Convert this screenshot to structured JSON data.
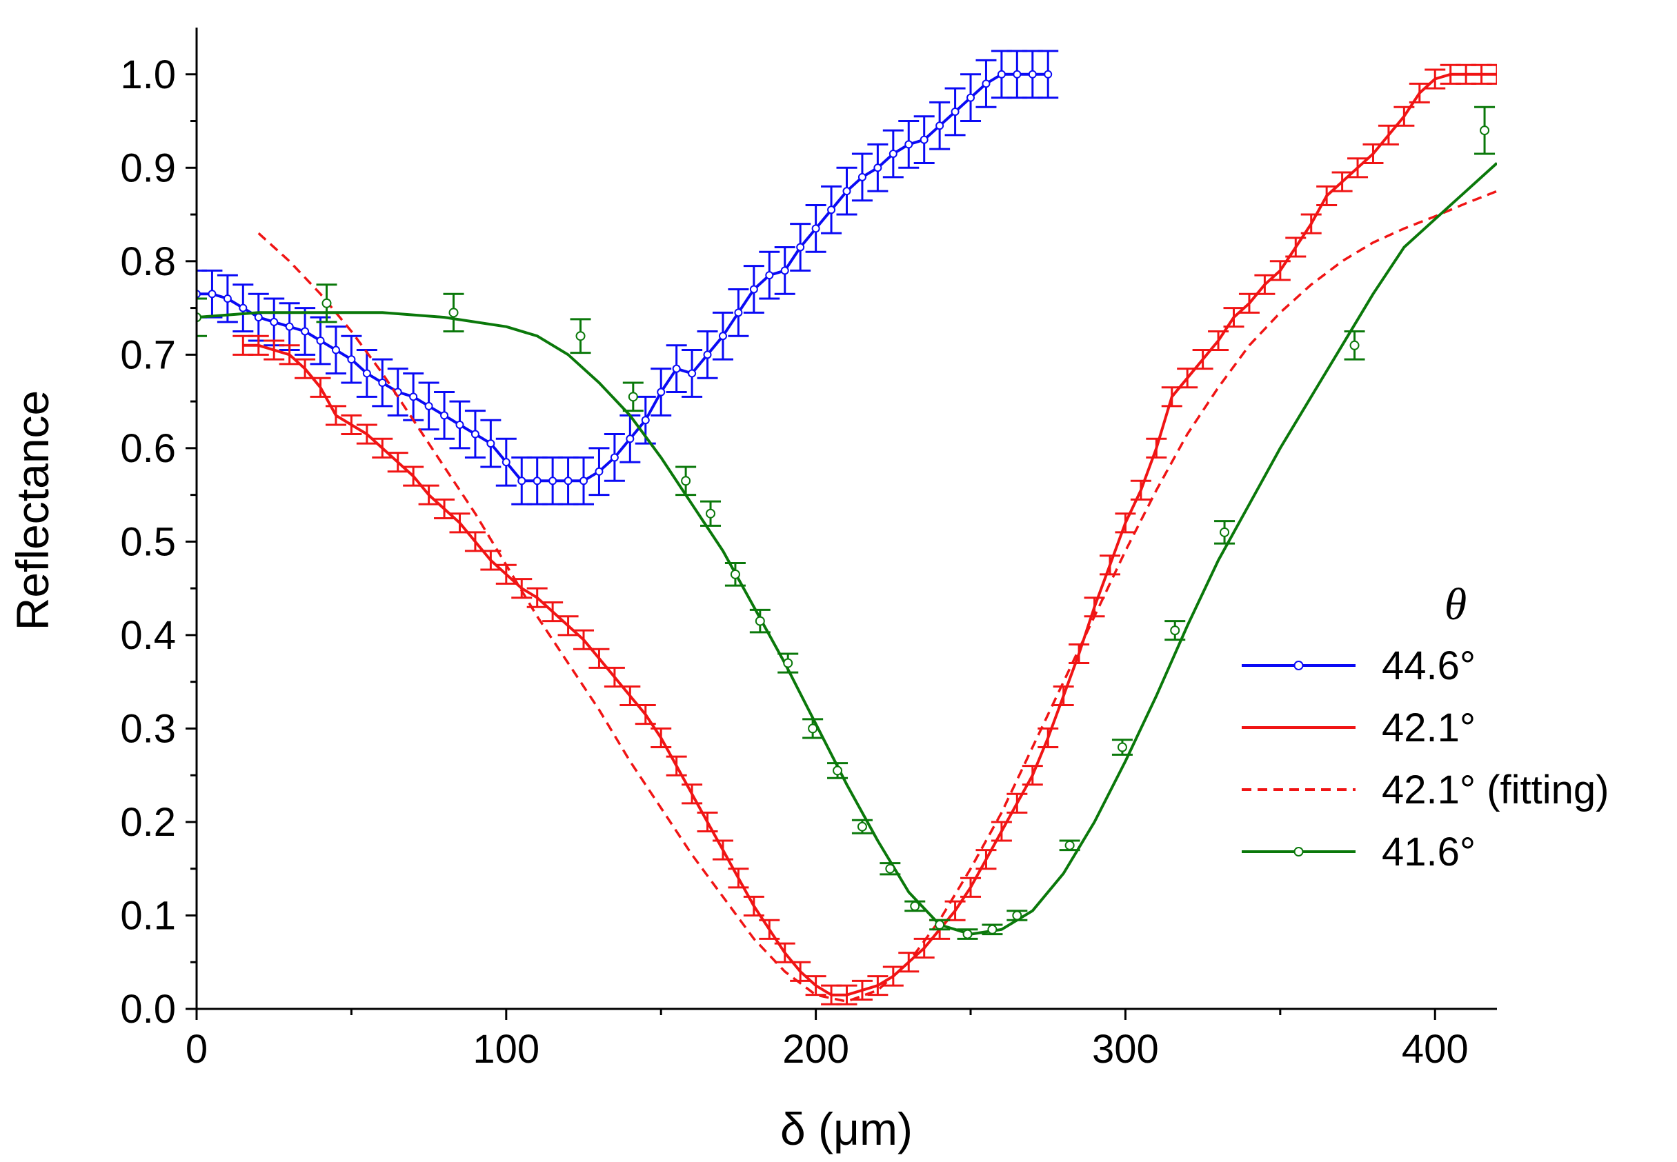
{
  "chart_data": {
    "type": "line",
    "xlabel": "δ (μm)",
    "ylabel": "Reflectance",
    "xlim": [
      0,
      420
    ],
    "ylim": [
      0,
      1.05
    ],
    "x_ticks": [
      0,
      100,
      200,
      300,
      400
    ],
    "x_tick_labels": [
      "0",
      "100",
      "200",
      "300",
      "400"
    ],
    "y_ticks": [
      0.0,
      0.1,
      0.2,
      0.3,
      0.4,
      0.5,
      0.6,
      0.7,
      0.8,
      0.9,
      1.0
    ],
    "y_tick_labels": [
      "0.0",
      "0.1",
      "0.2",
      "0.3",
      "0.4",
      "0.5",
      "0.6",
      "0.7",
      "0.8",
      "0.9",
      "1.0"
    ],
    "grid": false,
    "legend": {
      "title": "θ",
      "position": "right",
      "entries": [
        "44.6°",
        "42.1°",
        "42.1° (fitting)",
        "41.6°"
      ]
    },
    "series": [
      {
        "name": "44.6°",
        "color": "#0a0af5",
        "style": "solid",
        "marker": "circle",
        "error": 0.025,
        "x": [
          0,
          5,
          10,
          15,
          20,
          25,
          30,
          35,
          40,
          45,
          50,
          55,
          60,
          65,
          70,
          75,
          80,
          85,
          90,
          95,
          100,
          105,
          110,
          115,
          120,
          125,
          130,
          135,
          140,
          145,
          150,
          155,
          160,
          165,
          170,
          175,
          180,
          185,
          190,
          195,
          200,
          205,
          210,
          215,
          220,
          225,
          230,
          235,
          240,
          245,
          250,
          255,
          260,
          265,
          270,
          275
        ],
        "y": [
          0.765,
          0.765,
          0.76,
          0.75,
          0.74,
          0.735,
          0.73,
          0.725,
          0.715,
          0.705,
          0.695,
          0.68,
          0.67,
          0.66,
          0.655,
          0.645,
          0.635,
          0.625,
          0.615,
          0.605,
          0.585,
          0.565,
          0.565,
          0.565,
          0.565,
          0.565,
          0.575,
          0.59,
          0.61,
          0.63,
          0.66,
          0.685,
          0.68,
          0.7,
          0.72,
          0.745,
          0.77,
          0.785,
          0.79,
          0.815,
          0.835,
          0.855,
          0.875,
          0.89,
          0.9,
          0.915,
          0.925,
          0.93,
          0.945,
          0.96,
          0.975,
          0.99,
          1.0,
          1.0,
          1.0,
          1.0
        ]
      },
      {
        "name": "42.1°",
        "color": "#f01414",
        "style": "solid",
        "marker": "none",
        "error": 0.01,
        "x": [
          15,
          20,
          25,
          30,
          35,
          40,
          45,
          50,
          55,
          60,
          65,
          70,
          75,
          80,
          85,
          90,
          95,
          100,
          105,
          110,
          115,
          120,
          125,
          130,
          135,
          140,
          145,
          150,
          155,
          160,
          165,
          170,
          175,
          180,
          185,
          190,
          195,
          200,
          205,
          210,
          215,
          220,
          225,
          230,
          235,
          240,
          245,
          250,
          255,
          260,
          265,
          270,
          275,
          280,
          285,
          290,
          295,
          300,
          305,
          310,
          315,
          320,
          325,
          330,
          335,
          340,
          345,
          350,
          355,
          360,
          365,
          370,
          375,
          380,
          385,
          390,
          395,
          400,
          405,
          410,
          415,
          420
        ],
        "y": [
          0.71,
          0.71,
          0.705,
          0.7,
          0.685,
          0.665,
          0.635,
          0.625,
          0.615,
          0.6,
          0.585,
          0.57,
          0.55,
          0.535,
          0.52,
          0.5,
          0.48,
          0.465,
          0.45,
          0.44,
          0.425,
          0.41,
          0.395,
          0.375,
          0.355,
          0.335,
          0.315,
          0.29,
          0.26,
          0.23,
          0.2,
          0.17,
          0.14,
          0.11,
          0.085,
          0.06,
          0.04,
          0.025,
          0.015,
          0.015,
          0.02,
          0.025,
          0.035,
          0.05,
          0.065,
          0.085,
          0.105,
          0.13,
          0.16,
          0.19,
          0.22,
          0.25,
          0.29,
          0.335,
          0.38,
          0.43,
          0.475,
          0.52,
          0.555,
          0.6,
          0.655,
          0.675,
          0.695,
          0.715,
          0.74,
          0.755,
          0.775,
          0.79,
          0.815,
          0.84,
          0.87,
          0.885,
          0.9,
          0.915,
          0.935,
          0.955,
          0.98,
          0.995,
          1.0,
          1.0,
          1.0,
          1.0
        ]
      },
      {
        "name": "42.1° (fitting)",
        "color": "#f01414",
        "style": "dashed",
        "marker": "none",
        "x": [
          20,
          30,
          40,
          50,
          60,
          70,
          80,
          90,
          100,
          110,
          120,
          130,
          140,
          150,
          160,
          170,
          180,
          190,
          200,
          210,
          220,
          230,
          240,
          250,
          260,
          270,
          280,
          290,
          300,
          310,
          320,
          330,
          340,
          350,
          360,
          370,
          380,
          390,
          400,
          410,
          420
        ],
        "y": [
          0.83,
          0.8,
          0.765,
          0.725,
          0.68,
          0.63,
          0.58,
          0.53,
          0.475,
          0.42,
          0.37,
          0.32,
          0.265,
          0.215,
          0.165,
          0.12,
          0.075,
          0.04,
          0.015,
          0.008,
          0.02,
          0.05,
          0.095,
          0.15,
          0.21,
          0.28,
          0.35,
          0.42,
          0.49,
          0.555,
          0.615,
          0.665,
          0.71,
          0.745,
          0.775,
          0.8,
          0.82,
          0.835,
          0.848,
          0.862,
          0.875
        ]
      },
      {
        "name": "41.6°",
        "color": "#0a780a",
        "style": "solid",
        "marker": "circle",
        "line_x": [
          0,
          20,
          40,
          60,
          80,
          100,
          110,
          120,
          130,
          140,
          150,
          160,
          170,
          180,
          190,
          200,
          210,
          220,
          230,
          240,
          250,
          260,
          270,
          280,
          290,
          300,
          310,
          320,
          330,
          340,
          350,
          360,
          370,
          380,
          390,
          400,
          410,
          420
        ],
        "line_y": [
          0.74,
          0.745,
          0.745,
          0.745,
          0.74,
          0.73,
          0.72,
          0.7,
          0.67,
          0.635,
          0.59,
          0.54,
          0.49,
          0.43,
          0.37,
          0.305,
          0.24,
          0.18,
          0.125,
          0.09,
          0.08,
          0.085,
          0.105,
          0.145,
          0.2,
          0.265,
          0.335,
          0.41,
          0.48,
          0.54,
          0.6,
          0.655,
          0.71,
          0.765,
          0.815,
          0.845,
          0.875,
          0.905
        ],
        "x": [
          0,
          42,
          83,
          124,
          141,
          158,
          166,
          174,
          182,
          191,
          199,
          207,
          215,
          224,
          232,
          240,
          249,
          257,
          265,
          282,
          299,
          316,
          332,
          374,
          416
        ],
        "y": [
          0.74,
          0.755,
          0.745,
          0.72,
          0.655,
          0.565,
          0.53,
          0.465,
          0.415,
          0.37,
          0.3,
          0.255,
          0.195,
          0.15,
          0.11,
          0.09,
          0.08,
          0.085,
          0.1,
          0.175,
          0.28,
          0.405,
          0.51,
          0.71,
          0.94
        ],
        "errors": [
          0.02,
          0.02,
          0.02,
          0.018,
          0.015,
          0.015,
          0.013,
          0.012,
          0.012,
          0.01,
          0.01,
          0.008,
          0.007,
          0.006,
          0.005,
          0.005,
          0.005,
          0.005,
          0.005,
          0.005,
          0.008,
          0.01,
          0.012,
          0.015,
          0.025
        ]
      }
    ]
  }
}
